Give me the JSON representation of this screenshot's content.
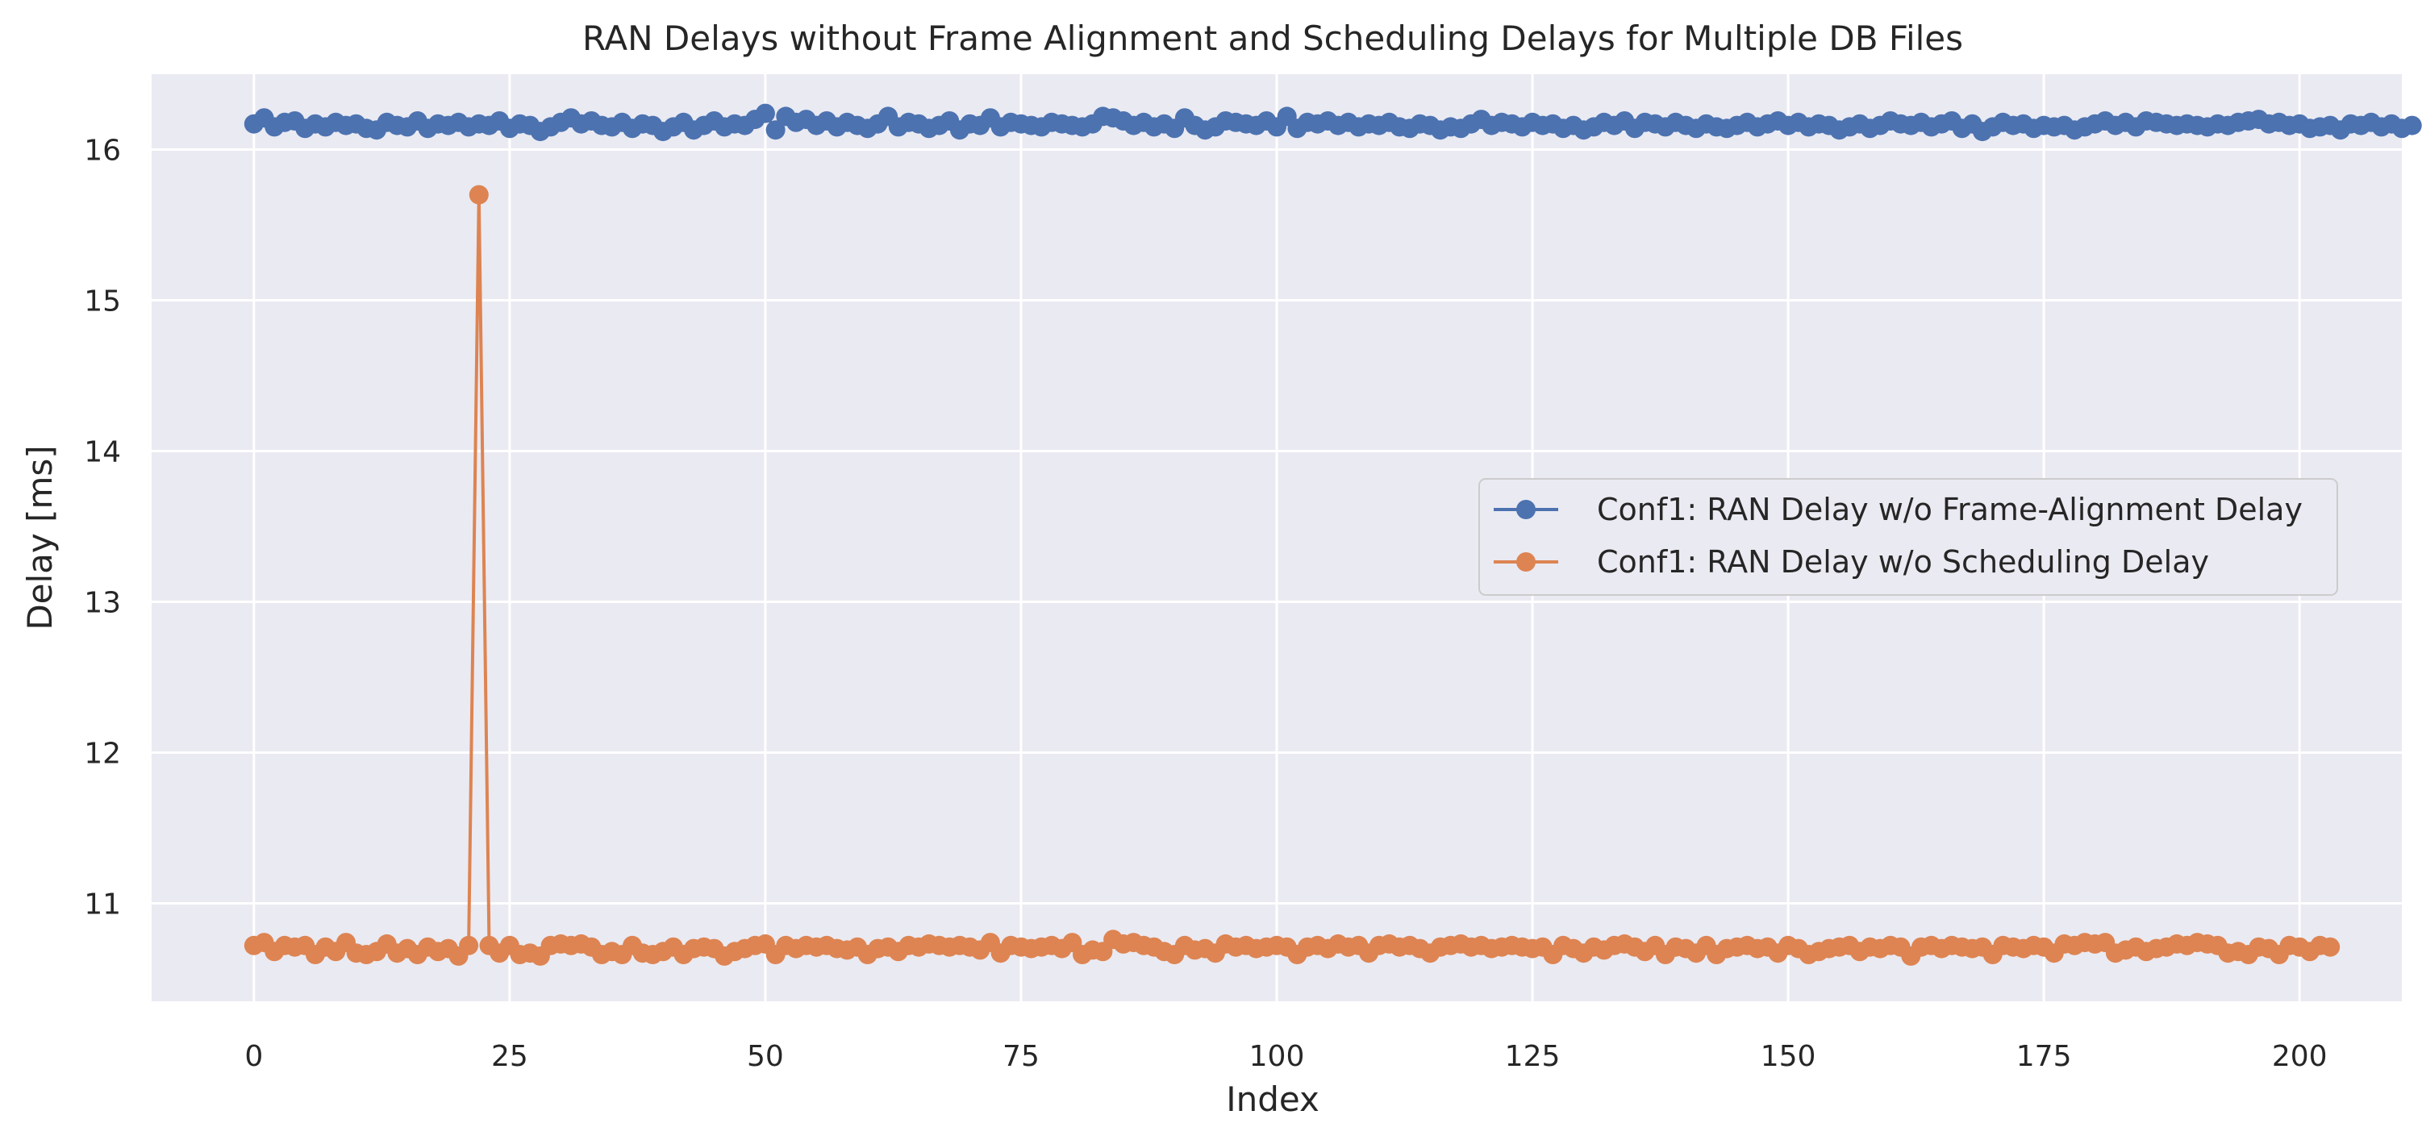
{
  "chart_data": {
    "type": "line",
    "title": "RAN Delays without Frame Alignment and Scheduling Delays for Multiple DB Files",
    "xlabel": "Index",
    "ylabel": "Delay [ms]",
    "xlim": [
      -10,
      210
    ],
    "ylim": [
      10.35,
      16.5
    ],
    "xticks": [
      0,
      25,
      50,
      75,
      100,
      125,
      150,
      175,
      200
    ],
    "yticks": [
      11,
      12,
      13,
      14,
      15,
      16
    ],
    "grid": true,
    "legend_position": "center-right",
    "series": [
      {
        "name": "Conf1: RAN Delay w/o Frame-Alignment Delay",
        "color": "#4C72B0",
        "marker": "circle",
        "base": 16.16,
        "values": [
          16.17,
          16.21,
          16.15,
          16.18,
          16.19,
          16.14,
          16.17,
          16.15,
          16.18,
          16.16,
          16.17,
          16.14,
          16.13,
          16.18,
          16.16,
          16.15,
          16.19,
          16.14,
          16.17,
          16.16,
          16.18,
          16.15,
          16.17,
          16.16,
          16.19,
          16.14,
          16.17,
          16.16,
          16.12,
          16.15,
          16.18,
          16.21,
          16.17,
          16.19,
          16.16,
          16.15,
          16.18,
          16.14,
          16.17,
          16.16,
          16.12,
          16.15,
          16.18,
          16.13,
          16.16,
          16.19,
          16.15,
          16.17,
          16.16,
          16.2,
          16.24,
          16.13,
          16.22,
          16.18,
          16.2,
          16.16,
          16.19,
          16.15,
          16.18,
          16.16,
          16.14,
          16.17,
          16.22,
          16.15,
          16.18,
          16.17,
          16.14,
          16.16,
          16.19,
          16.13,
          16.17,
          16.16,
          16.21,
          16.15,
          16.18,
          16.17,
          16.16,
          16.15,
          16.18,
          16.17,
          16.16,
          16.15,
          16.17,
          16.22,
          16.21,
          16.19,
          16.16,
          16.18,
          16.15,
          16.17,
          16.14,
          16.21,
          16.16,
          16.13,
          16.15,
          16.19,
          16.18,
          16.17,
          16.16,
          16.19,
          16.15,
          16.22,
          16.14,
          16.18,
          16.17,
          16.19,
          16.16,
          16.18,
          16.15,
          16.17,
          16.16,
          16.18,
          16.15,
          16.14,
          16.17,
          16.16,
          16.13,
          16.15,
          16.14,
          16.17,
          16.2,
          16.16,
          16.18,
          16.17,
          16.15,
          16.18,
          16.16,
          16.17,
          16.14,
          16.16,
          16.13,
          16.15,
          16.18,
          16.16,
          16.19,
          16.14,
          16.18,
          16.17,
          16.15,
          16.18,
          16.16,
          16.14,
          16.17,
          16.15,
          16.14,
          16.16,
          16.18,
          16.15,
          16.17,
          16.19,
          16.16,
          16.18,
          16.15,
          16.17,
          16.16,
          16.13,
          16.15,
          16.17,
          16.14,
          16.16,
          16.19,
          16.17,
          16.16,
          16.18,
          16.15,
          16.17,
          16.19,
          16.14,
          16.17,
          16.12,
          16.15,
          16.18,
          16.16,
          16.17,
          16.14,
          16.16,
          16.15,
          16.16,
          16.13,
          16.15,
          16.17,
          16.19,
          16.16,
          16.18,
          16.15,
          16.19,
          16.18,
          16.17,
          16.16,
          16.17,
          16.16,
          16.15,
          16.17,
          16.16,
          16.18,
          16.19,
          16.2,
          16.17,
          16.18,
          16.16,
          16.17,
          16.14,
          16.15,
          16.16,
          16.13,
          16.17,
          16.16,
          16.18,
          16.15,
          16.17,
          16.14,
          16.16
        ]
      },
      {
        "name": "Conf1: RAN Delay w/o Scheduling Delay",
        "color": "#DD8452",
        "marker": "circle",
        "base": 10.71,
        "values": [
          10.72,
          10.74,
          10.68,
          10.72,
          10.71,
          10.72,
          10.66,
          10.71,
          10.68,
          10.74,
          10.67,
          10.66,
          10.68,
          10.73,
          10.67,
          10.7,
          10.66,
          10.71,
          10.68,
          10.7,
          10.65,
          10.72,
          15.7,
          10.72,
          10.67,
          10.72,
          10.66,
          10.67,
          10.65,
          10.72,
          10.73,
          10.72,
          10.73,
          10.71,
          10.66,
          10.68,
          10.66,
          10.72,
          10.67,
          10.66,
          10.68,
          10.71,
          10.66,
          10.7,
          10.71,
          10.7,
          10.65,
          10.68,
          10.7,
          10.72,
          10.73,
          10.66,
          10.72,
          10.7,
          10.72,
          10.71,
          10.72,
          10.7,
          10.69,
          10.71,
          10.66,
          10.7,
          10.71,
          10.68,
          10.72,
          10.71,
          10.73,
          10.72,
          10.71,
          10.72,
          10.71,
          10.69,
          10.74,
          10.67,
          10.72,
          10.71,
          10.7,
          10.71,
          10.72,
          10.7,
          10.74,
          10.66,
          10.69,
          10.68,
          10.76,
          10.73,
          10.74,
          10.72,
          10.71,
          10.68,
          10.66,
          10.72,
          10.69,
          10.7,
          10.67,
          10.73,
          10.71,
          10.72,
          10.7,
          10.71,
          10.72,
          10.71,
          10.66,
          10.71,
          10.72,
          10.7,
          10.73,
          10.71,
          10.72,
          10.67,
          10.72,
          10.73,
          10.71,
          10.72,
          10.7,
          10.67,
          10.71,
          10.72,
          10.73,
          10.71,
          10.72,
          10.7,
          10.71,
          10.72,
          10.71,
          10.7,
          10.71,
          10.66,
          10.72,
          10.7,
          10.67,
          10.71,
          10.69,
          10.72,
          10.73,
          10.71,
          10.68,
          10.72,
          10.66,
          10.71,
          10.7,
          10.67,
          10.72,
          10.66,
          10.7,
          10.71,
          10.72,
          10.7,
          10.71,
          10.67,
          10.72,
          10.7,
          10.66,
          10.68,
          10.7,
          10.71,
          10.72,
          10.68,
          10.71,
          10.7,
          10.72,
          10.71,
          10.65,
          10.71,
          10.72,
          10.7,
          10.72,
          10.71,
          10.7,
          10.71,
          10.66,
          10.72,
          10.71,
          10.7,
          10.72,
          10.71,
          10.67,
          10.73,
          10.72,
          10.74,
          10.73,
          10.74,
          10.67,
          10.69,
          10.71,
          10.68,
          10.7,
          10.71,
          10.73,
          10.72,
          10.74,
          10.73,
          10.72,
          10.67,
          10.68,
          10.66,
          10.71,
          10.7,
          10.66,
          10.72,
          10.71,
          10.68,
          10.72,
          10.71
        ]
      }
    ]
  }
}
